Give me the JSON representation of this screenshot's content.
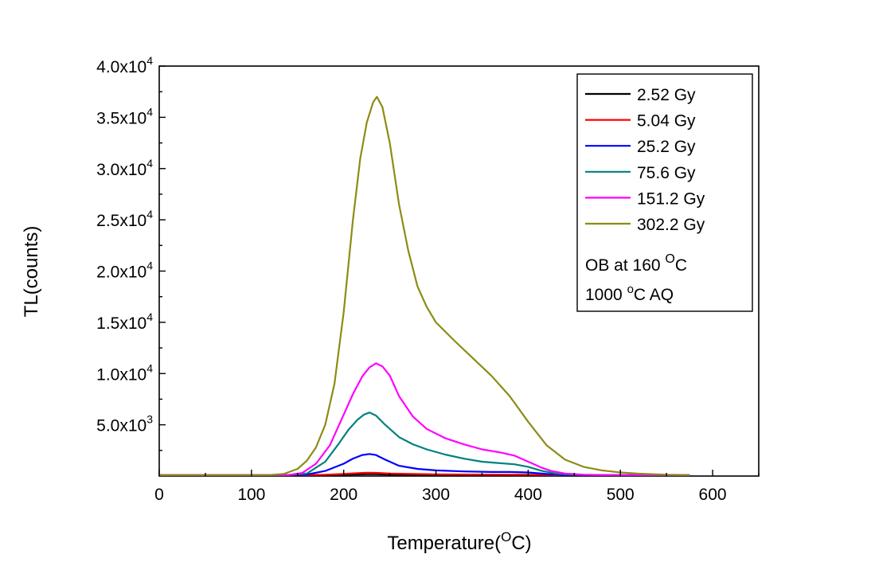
{
  "chart_data": {
    "type": "line",
    "xlabel": "Temperature(",
    "xlabel_sup": "O",
    "xlabel_end": "C)",
    "ylabel": "TL(counts)",
    "xlim": [
      0,
      650
    ],
    "ylim": [
      0,
      40000
    ],
    "x_ticks": [
      {
        "value": 0,
        "label": "0"
      },
      {
        "value": 100,
        "label": "100"
      },
      {
        "value": 200,
        "label": "200"
      },
      {
        "value": 300,
        "label": "300"
      },
      {
        "value": 400,
        "label": "400"
      },
      {
        "value": 500,
        "label": "500"
      },
      {
        "value": 600,
        "label": "600"
      }
    ],
    "y_ticks": [
      {
        "value": 5000,
        "mant": "5.0x10",
        "exp": "3"
      },
      {
        "value": 10000,
        "mant": "1.0x10",
        "exp": "4"
      },
      {
        "value": 15000,
        "mant": "1.5x10",
        "exp": "4"
      },
      {
        "value": 20000,
        "mant": "2.0x10",
        "exp": "4"
      },
      {
        "value": 25000,
        "mant": "2.5x10",
        "exp": "4"
      },
      {
        "value": 30000,
        "mant": "3.0x10",
        "exp": "4"
      },
      {
        "value": 35000,
        "mant": "3.5x10",
        "exp": "4"
      },
      {
        "value": 40000,
        "mant": "4.0x10",
        "exp": "4"
      }
    ],
    "grid": false,
    "legend_position": "top-right",
    "series": [
      {
        "name": "2.52 Gy",
        "color": "#000000",
        "x": [
          0,
          150,
          180,
          200,
          215,
          225,
          235,
          250,
          300,
          350,
          400,
          430,
          500,
          575
        ],
        "y": [
          100,
          100,
          110,
          130,
          160,
          180,
          175,
          150,
          125,
          115,
          110,
          100,
          100,
          100
        ]
      },
      {
        "name": "5.04 Gy",
        "color": "#ff0000",
        "x": [
          0,
          150,
          180,
          200,
          215,
          225,
          235,
          250,
          300,
          350,
          400,
          430,
          500,
          575
        ],
        "y": [
          100,
          100,
          130,
          200,
          280,
          320,
          310,
          240,
          170,
          140,
          130,
          110,
          100,
          100
        ]
      },
      {
        "name": "25.2 Gy",
        "color": "#0000ff",
        "x": [
          0,
          140,
          160,
          180,
          200,
          210,
          220,
          228,
          235,
          245,
          260,
          280,
          300,
          330,
          360,
          380,
          400,
          420,
          440,
          460,
          575
        ],
        "y": [
          100,
          100,
          150,
          500,
          1200,
          1700,
          2050,
          2150,
          2050,
          1600,
          1000,
          700,
          550,
          450,
          400,
          400,
          350,
          200,
          120,
          100,
          100
        ]
      },
      {
        "name": "75.6 Gy",
        "color": "#008080",
        "x": [
          0,
          140,
          160,
          180,
          195,
          205,
          215,
          222,
          228,
          235,
          245,
          260,
          275,
          290,
          310,
          330,
          350,
          370,
          385,
          400,
          415,
          430,
          450,
          470,
          575
        ],
        "y": [
          100,
          100,
          250,
          1400,
          3200,
          4500,
          5500,
          6000,
          6200,
          5900,
          5000,
          3800,
          3100,
          2600,
          2100,
          1700,
          1400,
          1250,
          1150,
          900,
          500,
          250,
          130,
          100,
          100
        ]
      },
      {
        "name": "151.2 Gy",
        "color": "#ff00ff",
        "x": [
          0,
          140,
          155,
          170,
          185,
          200,
          210,
          220,
          228,
          235,
          242,
          250,
          260,
          275,
          290,
          310,
          330,
          350,
          370,
          385,
          395,
          405,
          415,
          425,
          440,
          460,
          480,
          575
        ],
        "y": [
          100,
          100,
          300,
          1200,
          3000,
          6000,
          8000,
          9700,
          10600,
          11000,
          10700,
          9800,
          7800,
          5800,
          4600,
          3700,
          3100,
          2600,
          2300,
          2000,
          1600,
          1200,
          800,
          500,
          250,
          130,
          100,
          100
        ]
      },
      {
        "name": "302.2 Gy",
        "color": "#8c8c14",
        "x": [
          0,
          120,
          135,
          150,
          160,
          170,
          180,
          190,
          200,
          210,
          218,
          225,
          232,
          236,
          242,
          250,
          260,
          270,
          280,
          290,
          300,
          320,
          340,
          360,
          380,
          400,
          420,
          440,
          460,
          480,
          500,
          520,
          550,
          575
        ],
        "y": [
          100,
          100,
          200,
          700,
          1500,
          2800,
          5000,
          9000,
          16000,
          25000,
          31000,
          34500,
          36500,
          37000,
          36000,
          32500,
          26500,
          22000,
          18500,
          16500,
          15000,
          13200,
          11500,
          9800,
          7800,
          5300,
          3000,
          1600,
          900,
          550,
          350,
          230,
          130,
          100
        ]
      }
    ],
    "annotations": [
      {
        "main": "OB at 160 ",
        "sup": "O",
        "end": "C"
      },
      {
        "main": "1000 ",
        "sup": "o",
        "end": "C AQ"
      }
    ]
  }
}
